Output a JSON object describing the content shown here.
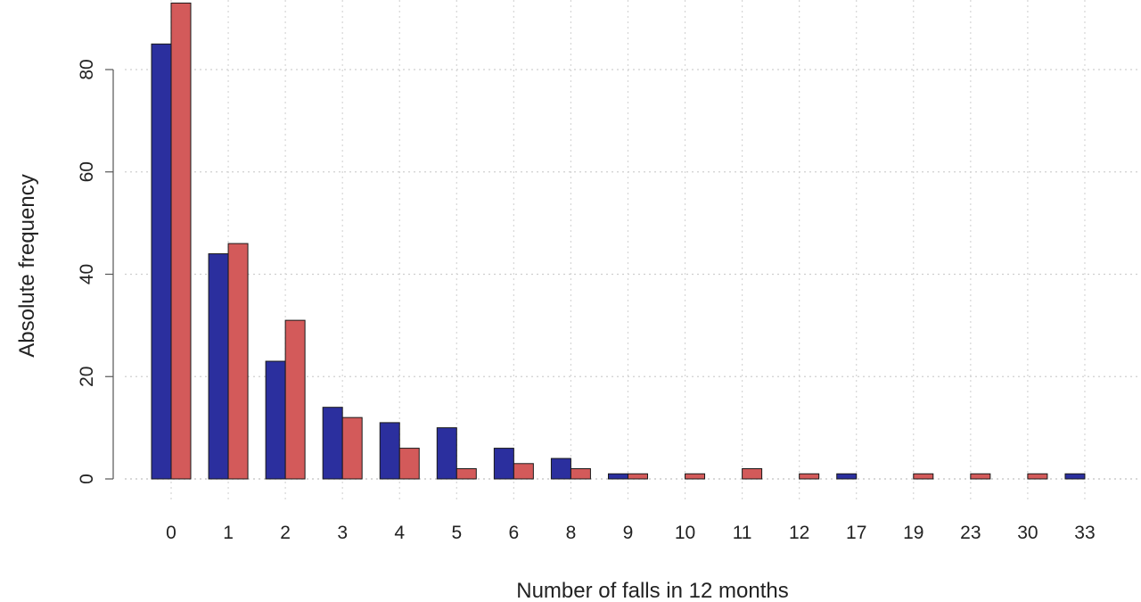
{
  "chart_data": {
    "type": "bar",
    "categories": [
      "0",
      "1",
      "2",
      "3",
      "4",
      "5",
      "6",
      "8",
      "9",
      "10",
      "11",
      "12",
      "17",
      "19",
      "23",
      "30",
      "33"
    ],
    "series": [
      {
        "values": [
          85,
          44,
          23,
          14,
          11,
          10,
          6,
          4,
          1,
          0,
          0,
          0,
          1,
          0,
          0,
          0,
          1
        ]
      },
      {
        "values": [
          93,
          46,
          31,
          12,
          6,
          2,
          3,
          2,
          1,
          1,
          2,
          1,
          0,
          1,
          1,
          1,
          0
        ]
      }
    ],
    "colors": [
      "#2b2f9e",
      "#d35a5a"
    ],
    "title": "",
    "xlabel": "Number of falls in 12 months",
    "ylabel": "Absolute frequency",
    "ylim": [
      0,
      93
    ],
    "yticks": [
      0,
      20,
      40,
      60,
      80
    ],
    "grid": true
  }
}
